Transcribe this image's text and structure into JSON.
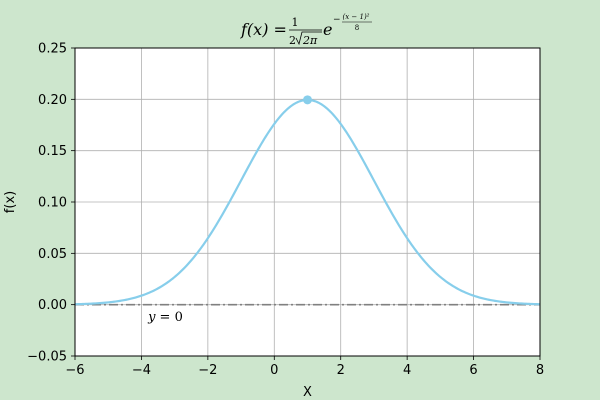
{
  "chart_data": {
    "type": "line",
    "title": {
      "lhs": "f(x) =",
      "numerator": "1",
      "denominator_coeff": "2",
      "denominator_radicand": "2π",
      "base": "e",
      "exponent_sign": "−",
      "exponent_numerator": "(x − 1)²",
      "exponent_denominator": "8"
    },
    "xlabel": "X",
    "ylabel": "f(x)",
    "xlim": [
      -6,
      8
    ],
    "ylim": [
      -0.05,
      0.25
    ],
    "xticks": [
      -6,
      -4,
      -2,
      0,
      2,
      4,
      6,
      8
    ],
    "xtick_labels": [
      "−6",
      "−4",
      "−2",
      "0",
      "2",
      "4",
      "6",
      "8"
    ],
    "yticks": [
      -0.05,
      0.0,
      0.05,
      0.1,
      0.15,
      0.2,
      0.25
    ],
    "ytick_labels": [
      "−0.05",
      "0.00",
      "0.05",
      "0.10",
      "0.15",
      "0.20",
      "0.25"
    ],
    "grid": true,
    "series": [
      {
        "name": "f(x)",
        "function": "normal pdf, mean 1, sd 2",
        "mean": 1,
        "sd": 2,
        "x_range": [
          -6,
          8
        ],
        "color": "#87ceeb"
      }
    ],
    "peak_point": {
      "x": 1,
      "y": 0.1995,
      "color": "#87ceeb"
    },
    "reference_line": {
      "y": 0,
      "style": "dash-dot",
      "color": "#808080"
    },
    "annotation": {
      "text_var": "y",
      "text_eq": " = 0",
      "x": -3.8,
      "y": -0.016
    }
  }
}
